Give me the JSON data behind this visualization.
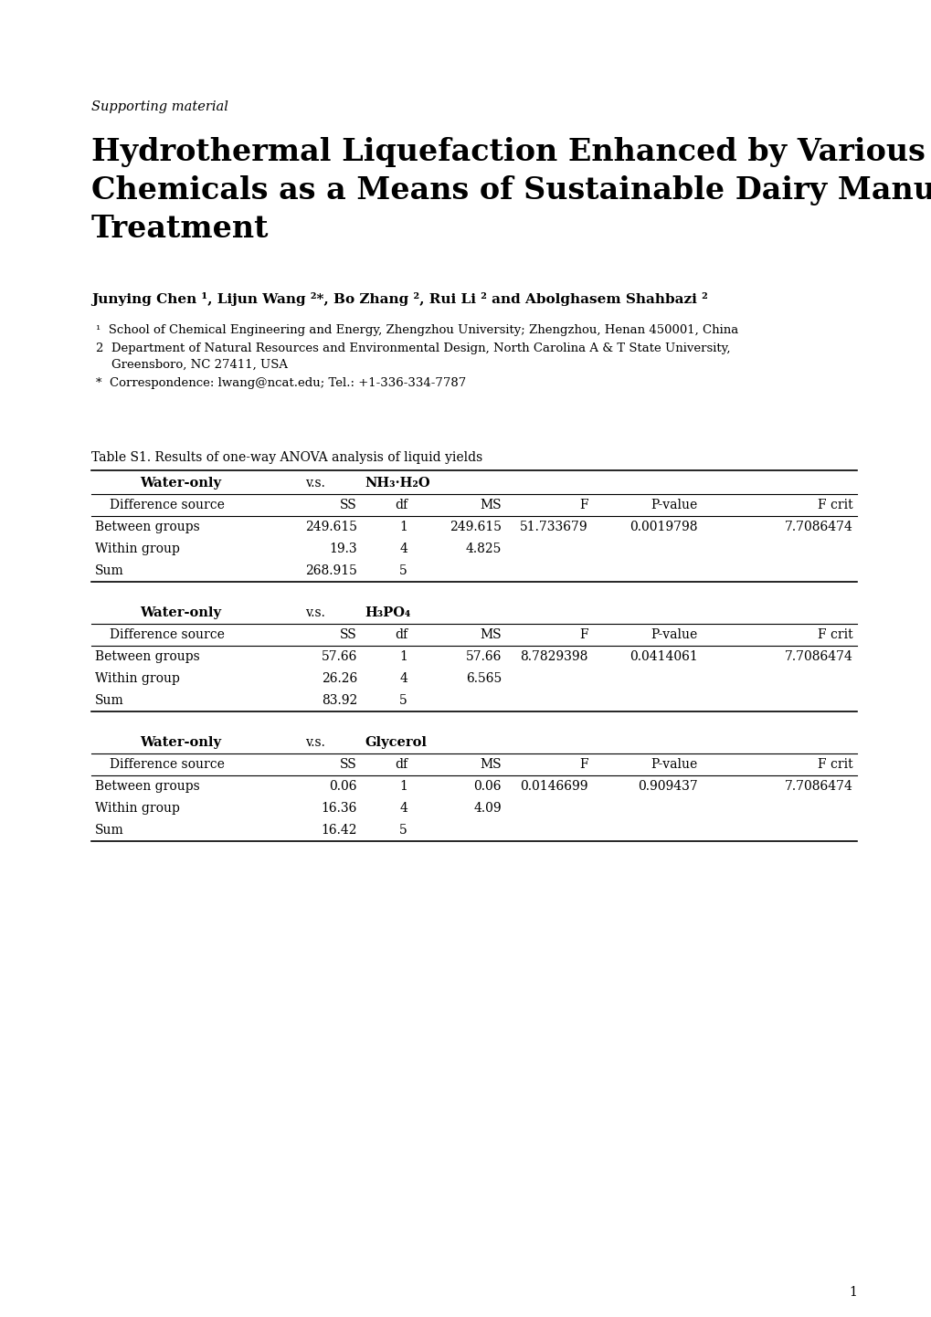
{
  "supporting_material": "Supporting material",
  "title_lines": [
    "Hydrothermal Liquefaction Enhanced by Various",
    "Chemicals as a Means of Sustainable Dairy Manure",
    "Treatment"
  ],
  "authors": "Junying Chen ¹, Lijun Wang ²*, Bo Zhang ², Rui Li ² and Abolghasem Shahbazi ²",
  "affil1": "¹  School of Chemical Engineering and Energy, Zhengzhou University; Zhengzhou, Henan 450001, China",
  "affil2_line1": "2  Department of Natural Resources and Environmental Design, North Carolina A & T State University,",
  "affil2_line2": "    Greensboro, NC 27411, USA",
  "affil3": "*  Correspondence: lwang@ncat.edu; Tel.: +1-336-334-7787",
  "table_title": "Table S1. Results of one-way ANOVA analysis of liquid yields",
  "tables": [
    {
      "header1_left": "Water-only",
      "header1_vs": "v.s.",
      "header1_right": "NH₃·H₂O",
      "col_headers": [
        "Difference source",
        "SS",
        "df",
        "MS",
        "F",
        "P-value",
        "F crit"
      ],
      "rows": [
        [
          "Between groups",
          "249.615",
          "1",
          "249.615",
          "51.733679",
          "0.0019798",
          "7.7086474"
        ],
        [
          "Within group",
          "19.3",
          "4",
          "4.825",
          "",
          "",
          ""
        ],
        [
          "Sum",
          "268.915",
          "5",
          "",
          "",
          "",
          ""
        ]
      ]
    },
    {
      "header1_left": "Water-only",
      "header1_vs": "v.s.",
      "header1_right": "H₃PO₄",
      "col_headers": [
        "Difference source",
        "SS",
        "df",
        "MS",
        "F",
        "P-value",
        "F crit"
      ],
      "rows": [
        [
          "Between groups",
          "57.66",
          "1",
          "57.66",
          "8.7829398",
          "0.0414061",
          "7.7086474"
        ],
        [
          "Within group",
          "26.26",
          "4",
          "6.565",
          "",
          "",
          ""
        ],
        [
          "Sum",
          "83.92",
          "5",
          "",
          "",
          "",
          ""
        ]
      ]
    },
    {
      "header1_left": "Water-only",
      "header1_vs": "v.s.",
      "header1_right": "Glycerol",
      "col_headers": [
        "Difference source",
        "SS",
        "df",
        "MS",
        "F",
        "P-value",
        "F crit"
      ],
      "rows": [
        [
          "Between groups",
          "0.06",
          "1",
          "0.06",
          "0.0146699",
          "0.909437",
          "7.7086474"
        ],
        [
          "Within group",
          "16.36",
          "4",
          "4.09",
          "",
          "",
          ""
        ],
        [
          "Sum",
          "16.42",
          "5",
          "",
          "",
          "",
          ""
        ]
      ]
    }
  ],
  "page_number": "1",
  "background_color": "#ffffff",
  "text_color": "#000000"
}
